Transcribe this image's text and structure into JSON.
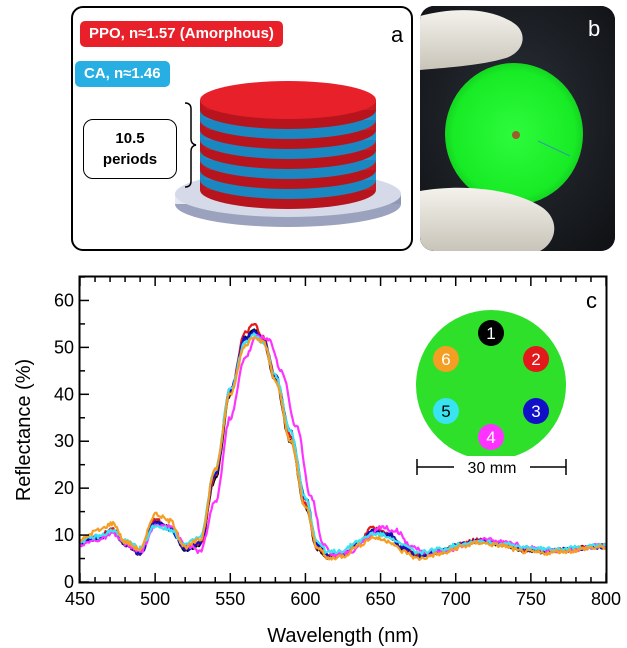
{
  "panel_a": {
    "label": "a",
    "ppo_label": "PPO, n≈1.57 (Amorphous)",
    "ca_label": "CA, n≈1.46",
    "periods_line1": "10.5",
    "periods_line2": "periods",
    "colors": {
      "ppo": "#e8202a",
      "ca": "#27aee3",
      "base": "#c6cbdd"
    }
  },
  "panel_b": {
    "label": "b",
    "colors": {
      "film": "#1ef52a",
      "background": "#1c1f24",
      "glove": "#e9e7e0"
    }
  },
  "panel_c": {
    "label": "c",
    "inset": {
      "scale_label": "30 mm",
      "spots": [
        {
          "id": "1",
          "color": "#000000"
        },
        {
          "id": "2",
          "color": "#e31a1c"
        },
        {
          "id": "3",
          "color": "#1010c8"
        },
        {
          "id": "4",
          "color": "#ff33ff"
        },
        {
          "id": "5",
          "color": "#39e3ef"
        },
        {
          "id": "6",
          "color": "#f59e24"
        }
      ],
      "disc_color": "#2ee02a"
    }
  },
  "chart_data": {
    "type": "line",
    "xlabel": "Wavelength (nm)",
    "ylabel": "Reflectance (%)",
    "xlim": [
      450,
      800
    ],
    "ylim": [
      0,
      65
    ],
    "xticks": [
      450,
      500,
      550,
      600,
      650,
      700,
      750,
      800
    ],
    "yticks": [
      0,
      10,
      20,
      30,
      40,
      50,
      60
    ],
    "grid": false,
    "series": [
      {
        "name": "1",
        "color": "#000000",
        "points": [
          [
            450,
            8.5
          ],
          [
            462,
            9.5
          ],
          [
            472,
            11
          ],
          [
            480,
            8
          ],
          [
            490,
            6
          ],
          [
            500,
            13
          ],
          [
            510,
            11.5
          ],
          [
            520,
            7
          ],
          [
            530,
            8
          ],
          [
            540,
            22
          ],
          [
            550,
            40
          ],
          [
            560,
            52
          ],
          [
            566,
            54
          ],
          [
            572,
            51
          ],
          [
            580,
            43
          ],
          [
            590,
            30
          ],
          [
            600,
            16
          ],
          [
            608,
            7
          ],
          [
            615,
            5.3
          ],
          [
            625,
            5.8
          ],
          [
            635,
            8
          ],
          [
            645,
            11
          ],
          [
            655,
            10
          ],
          [
            665,
            7
          ],
          [
            675,
            5.5
          ],
          [
            690,
            6.5
          ],
          [
            705,
            8
          ],
          [
            715,
            8.8
          ],
          [
            730,
            8
          ],
          [
            745,
            6.8
          ],
          [
            760,
            6.5
          ],
          [
            775,
            6.8
          ],
          [
            790,
            7.5
          ],
          [
            800,
            7.6
          ]
        ]
      },
      {
        "name": "2",
        "color": "#e31a1c",
        "points": [
          [
            450,
            8.5
          ],
          [
            462,
            9.7
          ],
          [
            472,
            11.2
          ],
          [
            480,
            8.2
          ],
          [
            490,
            6.2
          ],
          [
            500,
            13.2
          ],
          [
            510,
            11.7
          ],
          [
            520,
            7.2
          ],
          [
            530,
            8.3
          ],
          [
            540,
            22.5
          ],
          [
            550,
            41
          ],
          [
            560,
            53
          ],
          [
            566,
            55
          ],
          [
            572,
            52
          ],
          [
            580,
            44
          ],
          [
            590,
            31
          ],
          [
            600,
            16.5
          ],
          [
            608,
            7.2
          ],
          [
            615,
            5.5
          ],
          [
            625,
            6
          ],
          [
            635,
            8.3
          ],
          [
            645,
            11.6
          ],
          [
            655,
            10.4
          ],
          [
            665,
            7.2
          ],
          [
            675,
            5.7
          ],
          [
            690,
            6.7
          ],
          [
            705,
            8.2
          ],
          [
            715,
            9
          ],
          [
            730,
            8.2
          ],
          [
            745,
            7
          ],
          [
            760,
            6.6
          ],
          [
            775,
            6.9
          ],
          [
            790,
            7.6
          ],
          [
            800,
            7.7
          ]
        ]
      },
      {
        "name": "3",
        "color": "#1010c8",
        "points": [
          [
            450,
            8.4
          ],
          [
            462,
            9.4
          ],
          [
            472,
            10.8
          ],
          [
            480,
            8
          ],
          [
            490,
            6.1
          ],
          [
            500,
            12.8
          ],
          [
            510,
            11.3
          ],
          [
            520,
            7
          ],
          [
            530,
            8.4
          ],
          [
            540,
            23
          ],
          [
            550,
            41
          ],
          [
            560,
            52
          ],
          [
            566,
            53.5
          ],
          [
            572,
            51.5
          ],
          [
            580,
            44
          ],
          [
            590,
            32
          ],
          [
            600,
            18
          ],
          [
            608,
            8
          ],
          [
            615,
            5.6
          ],
          [
            625,
            5.9
          ],
          [
            635,
            8.1
          ],
          [
            645,
            10.8
          ],
          [
            655,
            10.2
          ],
          [
            665,
            7.3
          ],
          [
            675,
            5.6
          ],
          [
            690,
            6.6
          ],
          [
            705,
            8.1
          ],
          [
            715,
            8.9
          ],
          [
            730,
            8.1
          ],
          [
            745,
            6.9
          ],
          [
            760,
            6.6
          ],
          [
            775,
            6.9
          ],
          [
            790,
            7.4
          ],
          [
            800,
            7.5
          ]
        ]
      },
      {
        "name": "4",
        "color": "#ff33ff",
        "points": [
          [
            450,
            8
          ],
          [
            462,
            9
          ],
          [
            472,
            10.2
          ],
          [
            480,
            8.2
          ],
          [
            490,
            6.4
          ],
          [
            500,
            11.8
          ],
          [
            510,
            12.2
          ],
          [
            520,
            8
          ],
          [
            530,
            6.5
          ],
          [
            540,
            17
          ],
          [
            550,
            35
          ],
          [
            560,
            48
          ],
          [
            568,
            52.5
          ],
          [
            576,
            51.5
          ],
          [
            584,
            45
          ],
          [
            594,
            33
          ],
          [
            604,
            18
          ],
          [
            612,
            8
          ],
          [
            619,
            5.7
          ],
          [
            630,
            6.4
          ],
          [
            640,
            9
          ],
          [
            650,
            11.8
          ],
          [
            660,
            11
          ],
          [
            670,
            7.8
          ],
          [
            680,
            6
          ],
          [
            695,
            6.8
          ],
          [
            710,
            8.2
          ],
          [
            720,
            9
          ],
          [
            735,
            8.4
          ],
          [
            750,
            7.2
          ],
          [
            765,
            6.7
          ],
          [
            780,
            7
          ],
          [
            795,
            7.7
          ],
          [
            800,
            7.9
          ]
        ]
      },
      {
        "name": "5",
        "color": "#39e3ef",
        "points": [
          [
            450,
            8.8
          ],
          [
            462,
            9.7
          ],
          [
            472,
            10.9
          ],
          [
            480,
            8.7
          ],
          [
            490,
            7.2
          ],
          [
            500,
            12
          ],
          [
            510,
            11.2
          ],
          [
            520,
            8
          ],
          [
            530,
            9.5
          ],
          [
            540,
            24
          ],
          [
            550,
            41
          ],
          [
            560,
            51
          ],
          [
            566,
            52.5
          ],
          [
            572,
            51
          ],
          [
            580,
            44
          ],
          [
            590,
            32
          ],
          [
            600,
            18
          ],
          [
            608,
            8.5
          ],
          [
            615,
            6.3
          ],
          [
            625,
            6.7
          ],
          [
            635,
            8.7
          ],
          [
            645,
            10.3
          ],
          [
            655,
            9.8
          ],
          [
            665,
            7.8
          ],
          [
            675,
            6.3
          ],
          [
            690,
            7
          ],
          [
            705,
            8.2
          ],
          [
            715,
            8.7
          ],
          [
            730,
            8.1
          ],
          [
            745,
            7.4
          ],
          [
            760,
            7
          ],
          [
            775,
            7.2
          ],
          [
            790,
            7.6
          ],
          [
            800,
            7.8
          ]
        ]
      },
      {
        "name": "6",
        "color": "#f59e24",
        "points": [
          [
            450,
            9
          ],
          [
            462,
            11
          ],
          [
            472,
            12.5
          ],
          [
            480,
            8.5
          ],
          [
            490,
            7
          ],
          [
            500,
            14.5
          ],
          [
            510,
            13
          ],
          [
            520,
            7.5
          ],
          [
            530,
            9
          ],
          [
            540,
            24
          ],
          [
            550,
            40
          ],
          [
            560,
            50.5
          ],
          [
            566,
            52.5
          ],
          [
            572,
            51
          ],
          [
            580,
            43
          ],
          [
            590,
            30
          ],
          [
            600,
            16
          ],
          [
            608,
            7.5
          ],
          [
            615,
            5
          ],
          [
            625,
            5.5
          ],
          [
            635,
            7.8
          ],
          [
            645,
            9.5
          ],
          [
            655,
            8.8
          ],
          [
            665,
            6.5
          ],
          [
            675,
            5
          ],
          [
            690,
            6
          ],
          [
            705,
            7.6
          ],
          [
            715,
            8.4
          ],
          [
            730,
            7.8
          ],
          [
            745,
            6.5
          ],
          [
            760,
            6.2
          ],
          [
            775,
            6.6
          ],
          [
            790,
            7.3
          ],
          [
            800,
            7.4
          ]
        ]
      }
    ]
  }
}
